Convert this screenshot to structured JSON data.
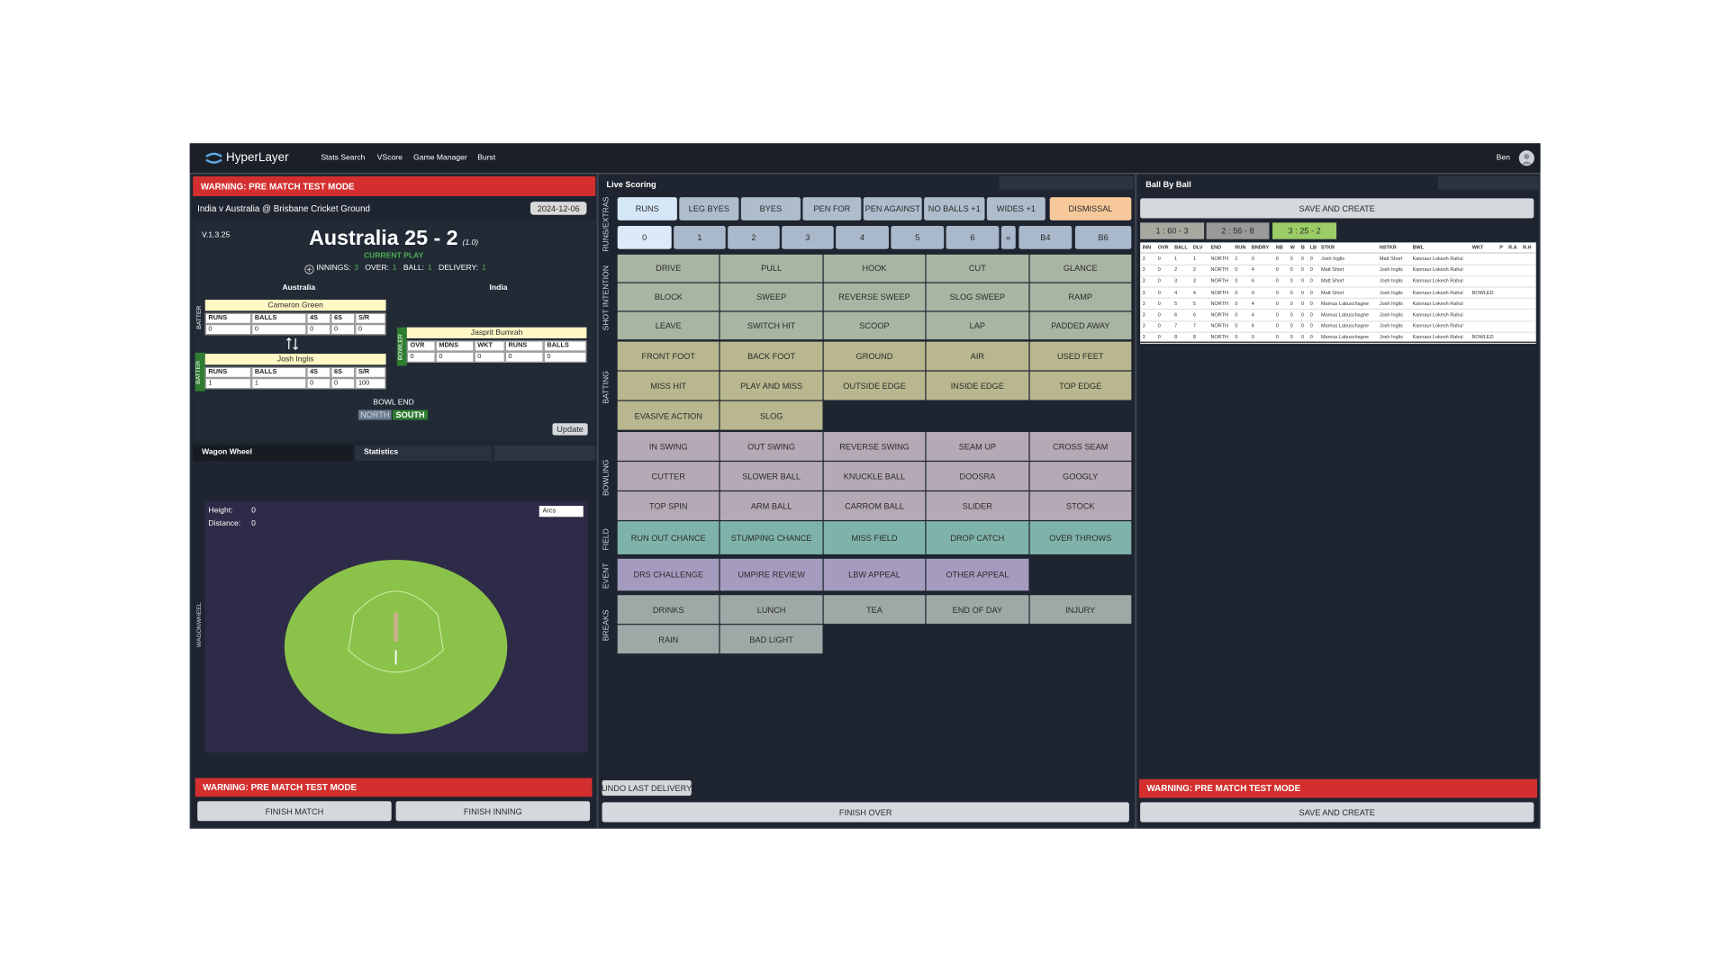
{
  "nav": {
    "brand": "HyperLayer",
    "links": [
      "Stats Search",
      "VScore",
      "Game Manager",
      "Burst"
    ],
    "user": "Ben"
  },
  "left": {
    "warning": "WARNING: PRE MATCH TEST MODE",
    "match": "India v Australia @ Brisbane Cricket Ground",
    "date": "2024-12-06",
    "version": "V.1.3.25",
    "score": "Australia 25 - 2",
    "overs": "(1.0)",
    "status": "CURRENT PLAY",
    "info": [
      {
        "label": "INNINGS:",
        "value": "3"
      },
      {
        "label": "OVER:",
        "value": "1"
      },
      {
        "label": "BALL:",
        "value": "1"
      },
      {
        "label": "DELIVERY:",
        "value": "1"
      }
    ],
    "teams": [
      "Australia",
      "India"
    ],
    "batters": [
      {
        "role": "BATTER",
        "name": "Cameron Green",
        "headers": [
          "RUNS",
          "BALLS",
          "4S",
          "6S",
          "S/R"
        ],
        "values": [
          "0",
          "0",
          "0",
          "0",
          "0"
        ]
      },
      {
        "role": "BATTER",
        "name": "Josh Inglis",
        "headers": [
          "RUNS",
          "BALLS",
          "4S",
          "6S",
          "S/R"
        ],
        "values": [
          "1",
          "1",
          "0",
          "0",
          "100"
        ]
      }
    ],
    "bowler": {
      "role": "BOWLER",
      "name": "Jasprit Bumrah",
      "headers": [
        "OVR",
        "MDNS",
        "WKT",
        "RUNS",
        "BALLS"
      ],
      "values": [
        "0",
        "0",
        "0",
        "0",
        "0"
      ]
    },
    "bowl_end": {
      "label": "BOWL END",
      "options": [
        "NORTH",
        "SOUTH"
      ]
    },
    "update": "Update",
    "tabs": [
      "Wagon Wheel",
      "Statistics"
    ],
    "wagon": {
      "height_label": "Height:",
      "height": "0",
      "distance_label": "Distance:",
      "distance": "0",
      "mode": "Arcs",
      "side_label": "WAGONWHEEL"
    },
    "bottom_warning": "WARNING: PRE MATCH TEST MODE",
    "buttons": [
      "FINISH MATCH",
      "FINISH INNING"
    ]
  },
  "middle": {
    "title": "Live Scoring",
    "extras_label": "RUNS/EXTRAS",
    "extras": [
      "RUNS",
      "LEG BYES",
      "BYES",
      "PEN FOR",
      "PEN AGAINST",
      "NO BALLS +1",
      "WIDES +1",
      "DISMISSAL"
    ],
    "runs": [
      "0",
      "1",
      "2",
      "3",
      "4",
      "5",
      "6",
      "«",
      "B4",
      "B6"
    ],
    "groups": [
      {
        "label": "SHOT INTENTION",
        "buttons": [
          "DRIVE",
          "PULL",
          "HOOK",
          "CUT",
          "GLANCE",
          "BLOCK",
          "SWEEP",
          "REVERSE SWEEP",
          "SLOG SWEEP",
          "RAMP",
          "LEAVE",
          "SWITCH HIT",
          "SCOOP",
          "LAP",
          "PADDED AWAY"
        ]
      },
      {
        "label": "BATTING",
        "buttons": [
          "FRONT FOOT",
          "BACK FOOT",
          "GROUND",
          "AIR",
          "USED FEET",
          "MISS HIT",
          "PLAY AND MISS",
          "OUTSIDE EDGE",
          "INSIDE EDGE",
          "TOP EDGE",
          "EVASIVE ACTION",
          "SLOG"
        ]
      },
      {
        "label": "BOWLING",
        "buttons": [
          "IN SWING",
          "OUT SWING",
          "REVERSE SWING",
          "SEAM UP",
          "CROSS SEAM",
          "CUTTER",
          "SLOWER BALL",
          "KNUCKLE BALL",
          "DOOSRA",
          "GOOGLY",
          "TOP SPIN",
          "ARM BALL",
          "CARROM BALL",
          "SLIDER",
          "STOCK"
        ]
      },
      {
        "label": "FIELD",
        "buttons": [
          "RUN OUT CHANCE",
          "STUMPING CHANCE",
          "MISS FIELD",
          "DROP CATCH",
          "OVER THROWS"
        ]
      },
      {
        "label": "EVENT",
        "buttons": [
          "DRS CHALLENGE",
          "UMPIRE REVIEW",
          "LBW APPEAL",
          "OTHER APPEAL"
        ]
      },
      {
        "label": "BREAKS",
        "buttons": [
          "DRINKS",
          "LUNCH",
          "TEA",
          "END OF DAY",
          "INJURY",
          "RAIN",
          "BAD LIGHT"
        ]
      }
    ],
    "undo": "UNDO LAST DELIVERY",
    "finish": "FINISH OVER"
  },
  "right": {
    "title": "Ball By Ball",
    "save": "SAVE AND CREATE",
    "overs": [
      "1 : 60 - 3",
      "2 : 56 - 8",
      "3 : 25 - 2"
    ],
    "table": {
      "headers": [
        "INN",
        "OVR",
        "BALL",
        "DLV",
        "END",
        "RUN",
        "BNDRY",
        "NB",
        "W",
        "B",
        "LB",
        "STKR",
        "NSTKR",
        "BWL",
        "WKT",
        "P",
        "R.A",
        "R.H"
      ],
      "rows": [
        [
          "3",
          "0",
          "1",
          "1",
          "NORTH",
          "1",
          "0",
          "0",
          "0",
          "0",
          "0",
          "Josh Inglis",
          "Matt Short",
          "Kannaur Lokesh Rahul"
        ],
        [
          "3",
          "0",
          "2",
          "2",
          "NORTH",
          "0",
          "4",
          "0",
          "0",
          "0",
          "0",
          "Matt Short",
          "Josh Inglis",
          "Kannaur Lokesh Rahul"
        ],
        [
          "3",
          "0",
          "3",
          "3",
          "NORTH",
          "0",
          "6",
          "0",
          "0",
          "0",
          "0",
          "Matt Short",
          "Josh Inglis",
          "Kannaur Lokesh Rahul"
        ],
        [
          "3",
          "0",
          "4",
          "4",
          "NORTH",
          "0",
          "0",
          "0",
          "0",
          "0",
          "0",
          "Matt Short",
          "Josh Inglis",
          "Kannaur Lokesh Rahul",
          "BOWLED"
        ],
        [
          "3",
          "0",
          "5",
          "5",
          "NORTH",
          "0",
          "4",
          "0",
          "0",
          "0",
          "0",
          "Marnus Labuschagne",
          "Josh Inglis",
          "Kannaur Lokesh Rahul"
        ],
        [
          "3",
          "0",
          "6",
          "6",
          "NORTH",
          "0",
          "4",
          "0",
          "0",
          "0",
          "0",
          "Marnus Labuschagne",
          "Josh Inglis",
          "Kannaur Lokesh Rahul"
        ],
        [
          "3",
          "0",
          "7",
          "7",
          "NORTH",
          "0",
          "6",
          "0",
          "0",
          "0",
          "0",
          "Marnus Labuschagne",
          "Josh Inglis",
          "Kannaur Lokesh Rahul"
        ],
        [
          "3",
          "0",
          "8",
          "8",
          "NORTH",
          "0",
          "0",
          "0",
          "0",
          "0",
          "0",
          "Marnus Labuschagne",
          "Josh Inglis",
          "Kannaur Lokesh Rahul",
          "BOWLED"
        ]
      ]
    },
    "bottom_warning": "WARNING: PRE MATCH TEST MODE",
    "bottom_save": "SAVE AND CREATE"
  }
}
